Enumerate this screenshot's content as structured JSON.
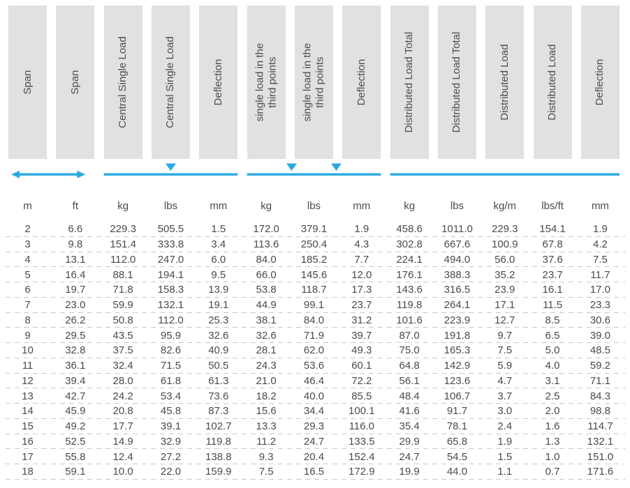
{
  "colors": {
    "accent": "#29a9e1",
    "band_bg": "#e2e1df",
    "header_text": "#4d4d4f",
    "body_text": "#4a4a4d",
    "separator": "#c9c9c9",
    "background": "#ffffff"
  },
  "table": {
    "headers": [
      "Span",
      "Span",
      "Central Single Load",
      "Central Single Load",
      "Deflection",
      "single load in the\nthird points",
      "single load in the\nthird points",
      "Deflection",
      "Distributed Load Total",
      "Distributed Load Total",
      "Distributed Load",
      "Distributed Load",
      "Deflection"
    ],
    "units": [
      "m",
      "ft",
      "kg",
      "lbs",
      "mm",
      "kg",
      "lbs",
      "mm",
      "kg",
      "lbs",
      "kg/m",
      "lbs/ft",
      "mm"
    ],
    "groups": [
      {
        "name": "span",
        "start": 0,
        "end": 1,
        "indicator": "double-arrow"
      },
      {
        "name": "central-single-load",
        "start": 2,
        "end": 4,
        "indicator": "beam-center-load"
      },
      {
        "name": "single-load-third-points",
        "start": 5,
        "end": 7,
        "indicator": "beam-third-point-loads"
      },
      {
        "name": "distributed-load",
        "start": 8,
        "end": 12,
        "indicator": "beam-distributed"
      }
    ],
    "rows": [
      [
        "2",
        "6.6",
        "229.3",
        "505.5",
        "1.5",
        "172.0",
        "379.1",
        "1.9",
        "458.6",
        "1011.0",
        "229.3",
        "154.1",
        "1.9"
      ],
      [
        "3",
        "9.8",
        "151.4",
        "333.8",
        "3.4",
        "113.6",
        "250.4",
        "4.3",
        "302.8",
        "667.6",
        "100.9",
        "67.8",
        "4.2"
      ],
      [
        "4",
        "13.1",
        "112.0",
        "247.0",
        "6.0",
        "84.0",
        "185.2",
        "7.7",
        "224.1",
        "494.0",
        "56.0",
        "37.6",
        "7.5"
      ],
      [
        "5",
        "16.4",
        "88.1",
        "194.1",
        "9.5",
        "66.0",
        "145.6",
        "12.0",
        "176.1",
        "388.3",
        "35.2",
        "23.7",
        "11.7"
      ],
      [
        "6",
        "19.7",
        "71.8",
        "158.3",
        "13.9",
        "53.8",
        "118.7",
        "17.3",
        "143.6",
        "316.5",
        "23.9",
        "16.1",
        "17.0"
      ],
      [
        "7",
        "23.0",
        "59.9",
        "132.1",
        "19.1",
        "44.9",
        "99.1",
        "23.7",
        "119.8",
        "264.1",
        "17.1",
        "11.5",
        "23.3"
      ],
      [
        "8",
        "26.2",
        "50.8",
        "112.0",
        "25.3",
        "38.1",
        "84.0",
        "31.2",
        "101.6",
        "223.9",
        "12.7",
        "8.5",
        "30.6"
      ],
      [
        "9",
        "29.5",
        "43.5",
        "95.9",
        "32.6",
        "32.6",
        "71.9",
        "39.7",
        "87.0",
        "191.8",
        "9.7",
        "6.5",
        "39.0"
      ],
      [
        "10",
        "32.8",
        "37.5",
        "82.6",
        "40.9",
        "28.1",
        "62.0",
        "49.3",
        "75.0",
        "165.3",
        "7.5",
        "5.0",
        "48.5"
      ],
      [
        "11",
        "36.1",
        "32.4",
        "71.5",
        "50.5",
        "24.3",
        "53.6",
        "60.1",
        "64.8",
        "142.9",
        "5.9",
        "4.0",
        "59.2"
      ],
      [
        "12",
        "39.4",
        "28.0",
        "61.8",
        "61.3",
        "21.0",
        "46.4",
        "72.2",
        "56.1",
        "123.6",
        "4.7",
        "3.1",
        "71.1"
      ],
      [
        "13",
        "42.7",
        "24.2",
        "53.4",
        "73.6",
        "18.2",
        "40.0",
        "85.5",
        "48.4",
        "106.7",
        "3.7",
        "2.5",
        "84.3"
      ],
      [
        "14",
        "45.9",
        "20.8",
        "45.8",
        "87.3",
        "15.6",
        "34.4",
        "100.1",
        "41.6",
        "91.7",
        "3.0",
        "2.0",
        "98.8"
      ],
      [
        "15",
        "49.2",
        "17.7",
        "39.1",
        "102.7",
        "13.3",
        "29.3",
        "116.0",
        "35.4",
        "78.1",
        "2.4",
        "1.6",
        "114.7"
      ],
      [
        "16",
        "52.5",
        "14.9",
        "32.9",
        "119.8",
        "11.2",
        "24.7",
        "133.5",
        "29.9",
        "65.8",
        "1.9",
        "1.3",
        "132.1"
      ],
      [
        "17",
        "55.8",
        "12.4",
        "27.2",
        "138.8",
        "9.3",
        "20.4",
        "152.4",
        "24.7",
        "54.5",
        "1.5",
        "1.0",
        "151.0"
      ],
      [
        "18",
        "59.1",
        "10.0",
        "22.0",
        "159.9",
        "7.5",
        "16.5",
        "172.9",
        "19.9",
        "44.0",
        "1.1",
        "0.7",
        "171.6"
      ]
    ]
  }
}
